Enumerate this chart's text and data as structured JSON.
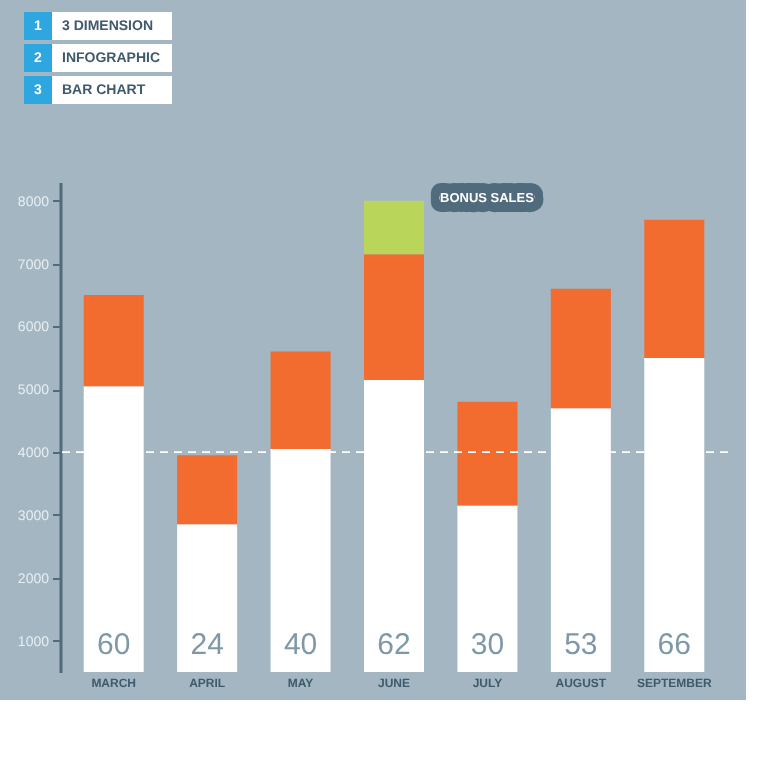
{
  "chart_data": {
    "type": "bar",
    "stacked": true,
    "categories": [
      "MARCH",
      "APRIL",
      "MAY",
      "JUNE",
      "JULY",
      "AUGUST",
      "SEPTEMBER"
    ],
    "series": [
      {
        "color": "#ffffff",
        "values": [
          5050,
          2850,
          4050,
          5150,
          3150,
          4700,
          5500
        ]
      },
      {
        "color": "#f26b2f",
        "values": [
          1450,
          1100,
          1550,
          2000,
          1650,
          1900,
          2200
        ]
      },
      {
        "color": "#b9d55a",
        "values": [
          null,
          null,
          null,
          850,
          null,
          null,
          null
        ]
      }
    ],
    "ylim": [
      500,
      8300
    ],
    "yticks": [
      1000,
      2000,
      3000,
      4000,
      5000,
      6000,
      7000,
      8000
    ],
    "ref_lines": [
      {
        "axis": "y",
        "value": 4000,
        "color": "#ffffff",
        "line_style": "dashed"
      }
    ],
    "annotations": [
      "1",
      "3 DIMENSION",
      "2",
      "INFOGRAPHIC",
      "3",
      "BAR CHART",
      "BONUS SALES",
      "60",
      "24",
      "40",
      "62",
      "30",
      "53",
      "66"
    ],
    "grid": false,
    "legend": false
  }
}
